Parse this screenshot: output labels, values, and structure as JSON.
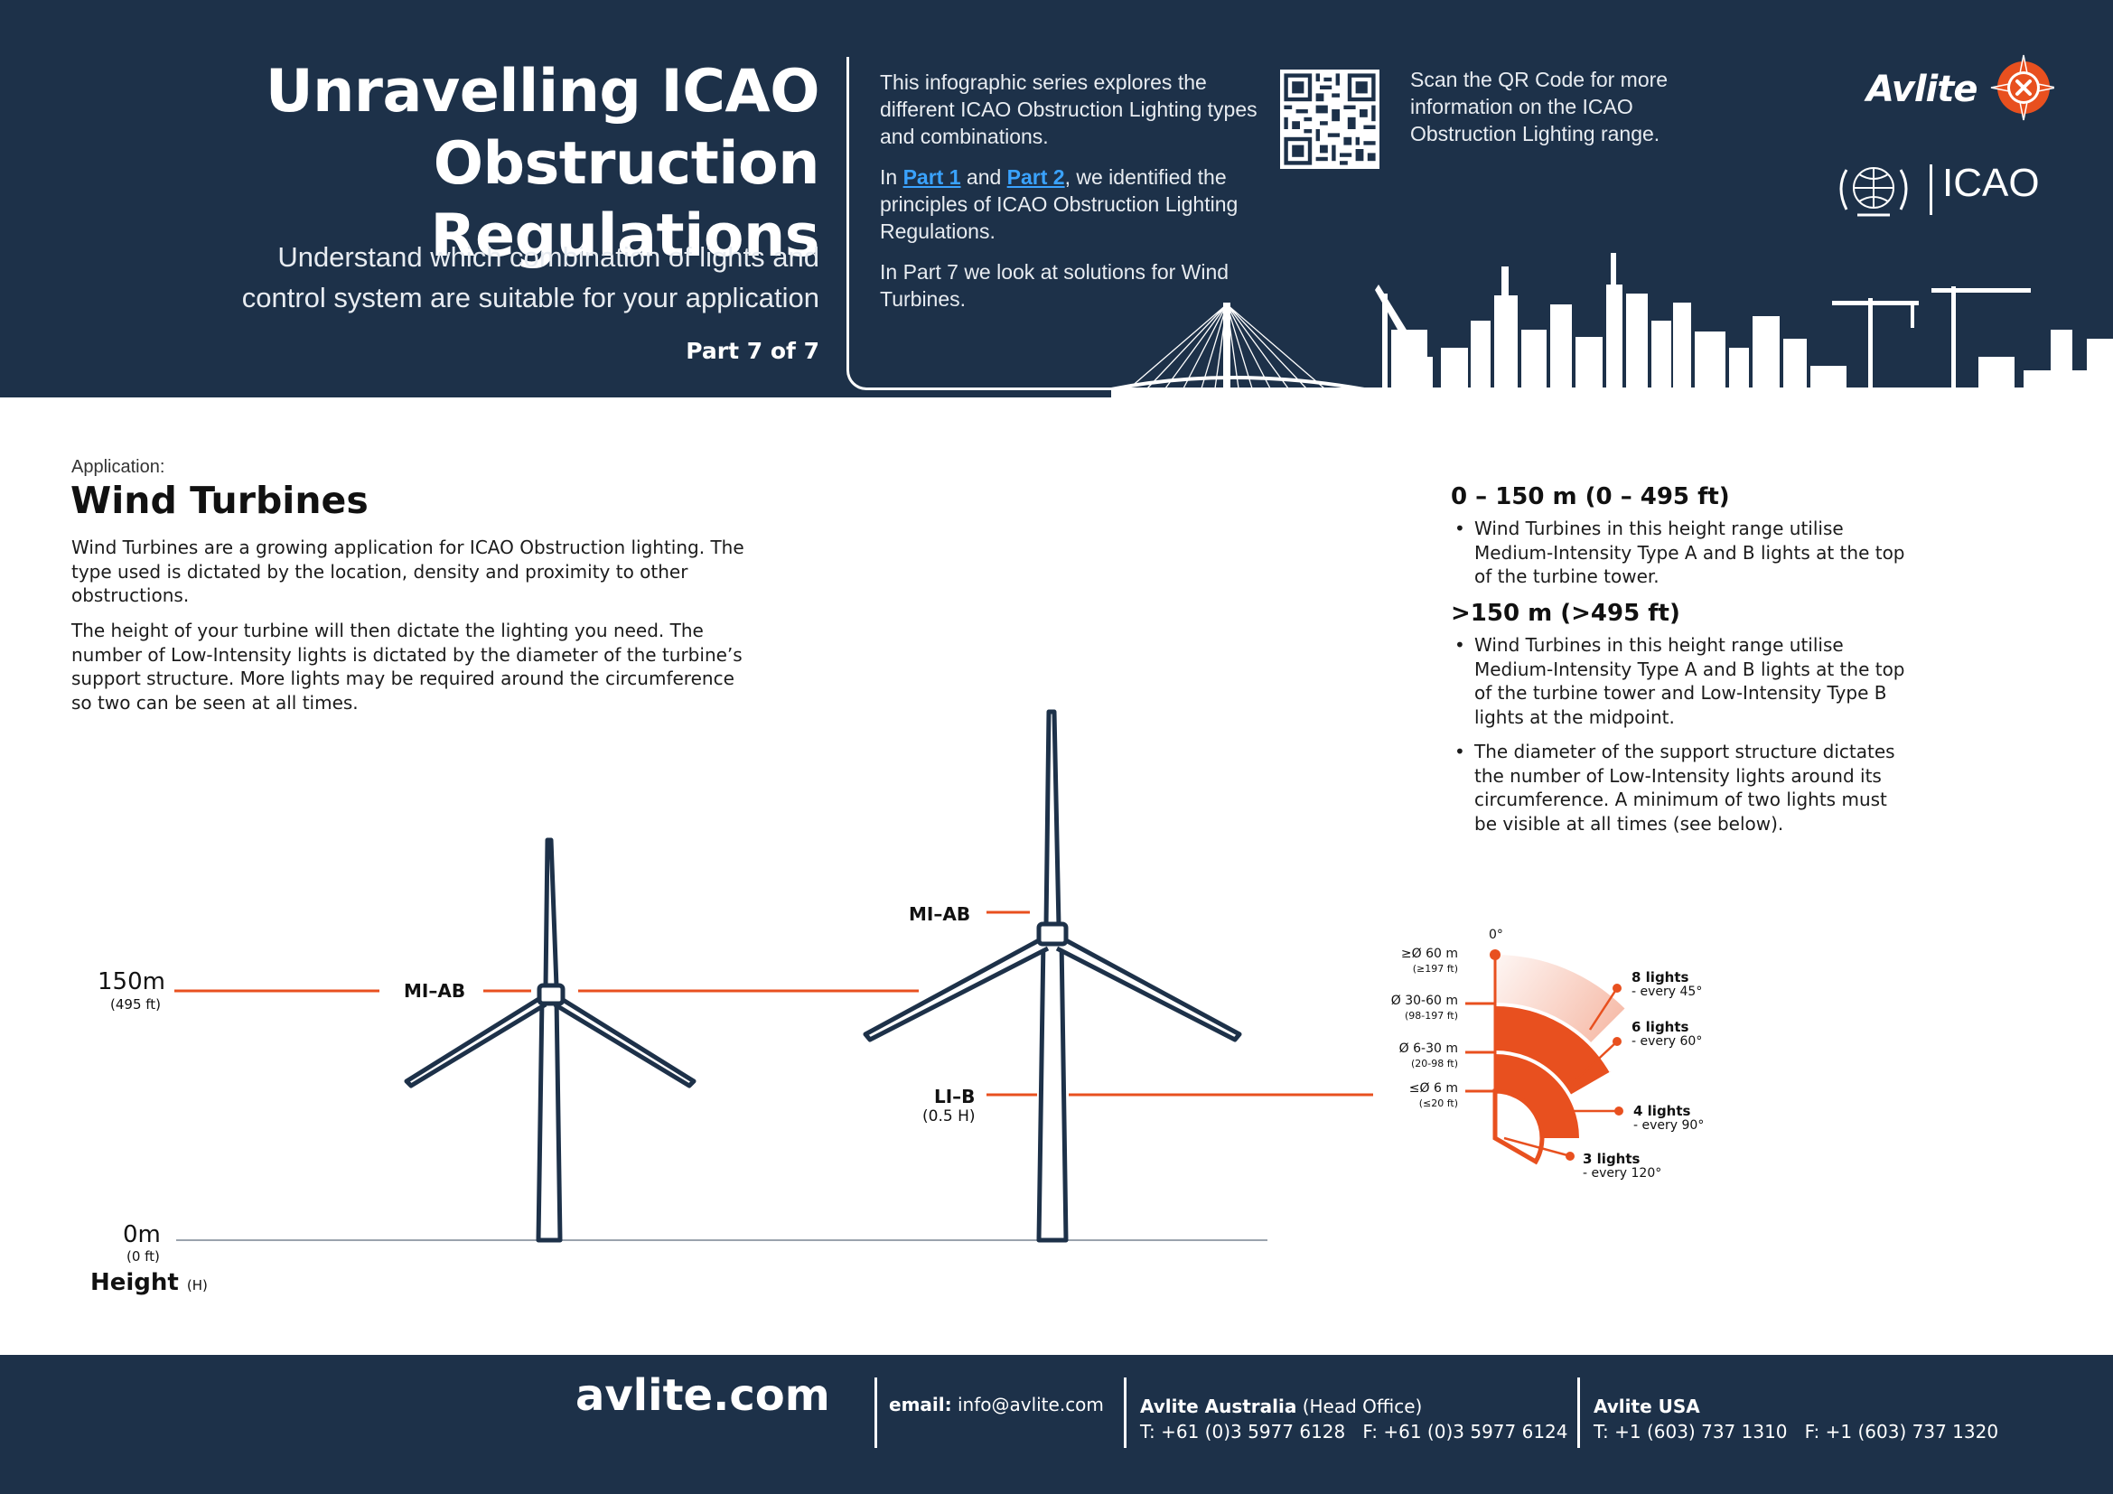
{
  "header": {
    "title_line1": "Unravelling ICAO",
    "title_line2": "Obstruction Regulations",
    "subtitle_line1": "Understand which combination of lights and",
    "subtitle_line2": "control system are suitable for your application",
    "part": "Part 7 of 7",
    "intro_p1": "This infographic series explores the different ICAO Obstruction Lighting types and combinations.",
    "intro_p2_pre": "In ",
    "intro_link1": "Part 1",
    "intro_p2_mid": " and ",
    "intro_link2": "Part 2",
    "intro_p2_post": ", we identified the principles of ICAO Obstruction Lighting Regulations.",
    "intro_p3": "In Part 7 we look at solutions for Wind Turbines.",
    "qr_text": "Scan the QR Code for more information on the ICAO Obstruction Lighting range.",
    "avlite_logo": "Avlite",
    "icao_logo": "ICAO",
    "colors": {
      "navy": "#1d3149",
      "orange": "#e8501f",
      "link": "#3aa3ff"
    }
  },
  "content": {
    "application_label": "Application:",
    "application_title": "Wind Turbines",
    "para1": "Wind Turbines are a growing application for ICAO Obstruction lighting. The type used is dictated by the location, density and proximity to other obstructions.",
    "para2": "The height of your turbine will then dictate the lighting you need. The number of Low-Intensity lights is dictated by the diameter of the turbine’s support structure. More lights may be required around the circumference so two can be seen at all times.",
    "range1_heading": "0 – 150 m (0 – 495 ft)",
    "range1_bullet": "Wind Turbines in this height range utilise Medium-Intensity Type A and B lights at the top of the turbine tower.",
    "range2_heading": ">150 m (>495 ft)",
    "range2_bullet1": "Wind Turbines in this height range utilise Medium-Intensity Type A and B lights at the top of the turbine tower and Low-Intensity Type B lights at the midpoint.",
    "range2_bullet2": "The diameter of the support structure dictates the number of Low-Intensity lights around its circumference. A minimum of two lights must be visible at all times (see below)."
  },
  "diagram": {
    "h150": "150m",
    "h150_ft": "(495 ft)",
    "h0": "0m",
    "h0_ft": "(0 ft)",
    "height_label": "Height",
    "height_unit": "(H)",
    "turbine1_label": "MI–AB",
    "turbine2_top_label": "MI–AB",
    "turbine2_mid_label": "LI–B",
    "turbine2_mid_sub": "(0.5 H)"
  },
  "light_chart": {
    "zero_label": "0°",
    "rows": [
      {
        "diameter": "≥Ø 60 m",
        "diameter_ft": "(≥197 ft)",
        "lights": "8 lights",
        "spacing": "- every 45°"
      },
      {
        "diameter": "Ø 30-60 m",
        "diameter_ft": "(98-197 ft)",
        "lights": "6 lights",
        "spacing": "- every 60°"
      },
      {
        "diameter": "Ø 6-30 m",
        "diameter_ft": "(20-98 ft)",
        "lights": "4 lights",
        "spacing": "- every 90°"
      },
      {
        "diameter": "≤Ø 6 m",
        "diameter_ft": "(≤20 ft)",
        "lights": "3 lights",
        "spacing": "- every 120°"
      }
    ]
  },
  "footer": {
    "website": "avlite.com",
    "email_label": "email:",
    "email": "info@avlite.com",
    "office1_name": "Avlite Australia",
    "office1_tag": " (Head Office)",
    "office1_phones": "T: +61 (0)3 5977 6128   F: +61 (0)3 5977 6124",
    "office2_name": "Avlite USA",
    "office2_phones": "T: +1 (603) 737 1310   F: +1 (603) 737 1320"
  }
}
